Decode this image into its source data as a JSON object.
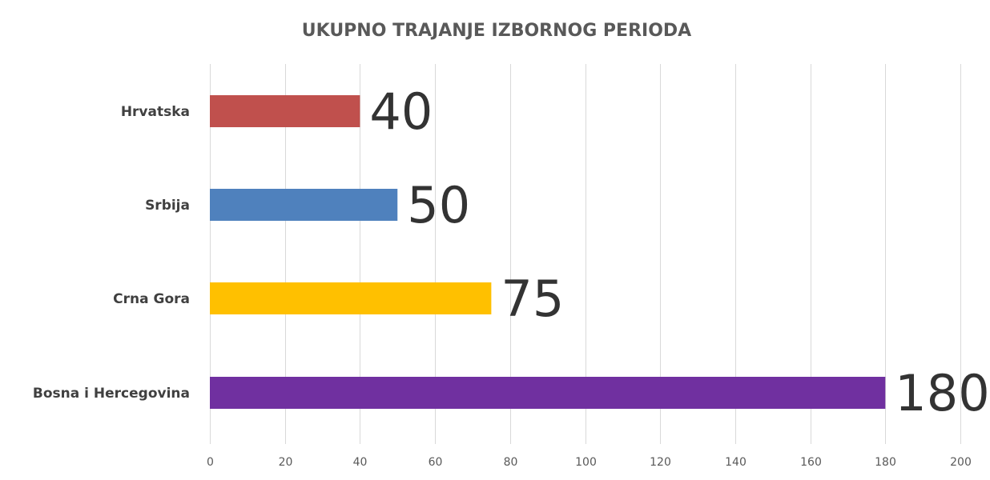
{
  "chart_data": {
    "type": "bar",
    "orientation": "horizontal",
    "title": "UKUPNO TRAJANJE IZBORNOG PERIODA",
    "categories": [
      "Hrvatska",
      "Srbija",
      "Crna Gora",
      "Bosna i Hercegovina"
    ],
    "values": [
      40,
      50,
      75,
      180
    ],
    "colors": [
      "#c0504d",
      "#4f81bd",
      "#ffc000",
      "#7030a0"
    ],
    "xlim": [
      0,
      200
    ],
    "xticks": [
      0,
      20,
      40,
      60,
      80,
      100,
      120,
      140,
      160,
      180,
      200
    ],
    "grid": "vertical",
    "legend": "none"
  }
}
